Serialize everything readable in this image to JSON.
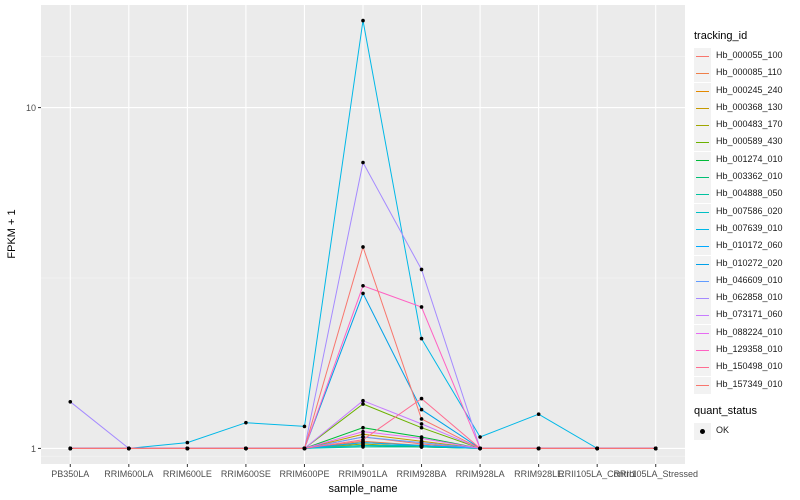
{
  "chart_data": {
    "type": "line",
    "xlabel": "sample_name",
    "ylabel": "FPKM + 1",
    "y_scale": "log10",
    "ylim": [
      0.9,
      20
    ],
    "y_ticks": [
      1,
      10
    ],
    "y_tick_labels": [
      "1",
      "10"
    ],
    "grid": true,
    "legend_position": "right",
    "categories": [
      "PB350LA",
      "RRIM600LA",
      "RRIM600LE",
      "RRIM600SE",
      "RRIM600PE",
      "RRIM901LA",
      "RRIM928BA",
      "RRIM928LA",
      "RRIM928LE",
      "RRII105LA_Control",
      "RRII105LA_Stressed"
    ],
    "series": [
      {
        "name": "Hb_000055_100",
        "color": "#F8766D",
        "values": [
          1,
          1,
          1,
          1,
          1,
          1.08,
          1.03,
          1,
          1,
          1,
          1
        ]
      },
      {
        "name": "Hb_000085_110",
        "color": "#EF7F49",
        "values": [
          1,
          1,
          1,
          1,
          1,
          1.05,
          1.02,
          1,
          1,
          1,
          1
        ]
      },
      {
        "name": "Hb_000245_240",
        "color": "#E38900",
        "values": [
          1,
          1,
          1,
          1,
          1,
          1.04,
          1.02,
          1,
          1,
          1,
          1
        ]
      },
      {
        "name": "Hb_000368_130",
        "color": "#C59900",
        "values": [
          1,
          1,
          1,
          1,
          1,
          1.1,
          1.05,
          1,
          1,
          1,
          1
        ]
      },
      {
        "name": "Hb_000483_170",
        "color": "#9FA600",
        "values": [
          1,
          1,
          1,
          1,
          1,
          1.03,
          1.01,
          1,
          1,
          1,
          1
        ]
      },
      {
        "name": "Hb_000589_430",
        "color": "#6BB100",
        "values": [
          1,
          1,
          1,
          1,
          1,
          1.35,
          1.15,
          1,
          1,
          1,
          1
        ]
      },
      {
        "name": "Hb_001274_010",
        "color": "#00BA38",
        "values": [
          1,
          1,
          1,
          1,
          1,
          1.15,
          1.08,
          1,
          1,
          1,
          1
        ]
      },
      {
        "name": "Hb_003362_010",
        "color": "#00BF74",
        "values": [
          1,
          1,
          1,
          1,
          1,
          1.02,
          1.01,
          1,
          1,
          1,
          1
        ]
      },
      {
        "name": "Hb_004888_050",
        "color": "#00C19F",
        "values": [
          1,
          1,
          1,
          1,
          1,
          1.01,
          1.01,
          1,
          1,
          1,
          1
        ]
      },
      {
        "name": "Hb_007586_020",
        "color": "#00BFC4",
        "values": [
          1,
          1,
          1,
          1,
          1,
          1.02,
          1.02,
          1,
          1,
          1,
          1
        ]
      },
      {
        "name": "Hb_007639_010",
        "color": "#00B8E7",
        "values": [
          1,
          1,
          1.04,
          1.19,
          1.16,
          18.0,
          2.1,
          1.08,
          1.26,
          1,
          1
        ]
      },
      {
        "name": "Hb_010172_060",
        "color": "#00A9FF",
        "values": [
          1,
          1,
          1,
          1,
          1,
          1.04,
          1.02,
          1,
          1,
          1,
          1
        ]
      },
      {
        "name": "Hb_010272_020",
        "color": "#00A0E8",
        "values": [
          1,
          1,
          1,
          1,
          1,
          2.85,
          1.3,
          1,
          1,
          1,
          1
        ]
      },
      {
        "name": "Hb_046609_010",
        "color": "#619CFF",
        "values": [
          1,
          1,
          1,
          1,
          1,
          1.08,
          1.04,
          1,
          1,
          1,
          1
        ]
      },
      {
        "name": "Hb_062858_010",
        "color": "#A58AFF",
        "values": [
          1.37,
          1,
          1,
          1,
          1,
          6.9,
          3.35,
          1,
          1,
          1,
          1
        ]
      },
      {
        "name": "Hb_073171_060",
        "color": "#C77CFF",
        "values": [
          1,
          1,
          1,
          1,
          1,
          1.38,
          1.18,
          1,
          1,
          1,
          1
        ]
      },
      {
        "name": "Hb_088224_010",
        "color": "#E76BF3",
        "values": [
          1,
          1,
          1,
          1,
          1,
          1.12,
          1.07,
          1,
          1,
          1,
          1
        ]
      },
      {
        "name": "Hb_129358_010",
        "color": "#FF61C3",
        "values": [
          1,
          1,
          1,
          1,
          1,
          3.0,
          2.6,
          1,
          1,
          1,
          1
        ]
      },
      {
        "name": "Hb_150498_010",
        "color": "#FF6C91",
        "values": [
          1,
          1,
          1,
          1,
          1,
          1.06,
          1.4,
          1,
          1,
          1,
          1
        ]
      },
      {
        "name": "Hb_157349_010",
        "color": "#F8766D",
        "values": [
          1,
          1,
          1,
          1,
          1,
          3.9,
          1.22,
          1,
          1,
          1,
          1
        ]
      }
    ]
  },
  "legend": {
    "title": "tracking_id",
    "quant_title": "quant_status",
    "quant_label": "OK"
  }
}
